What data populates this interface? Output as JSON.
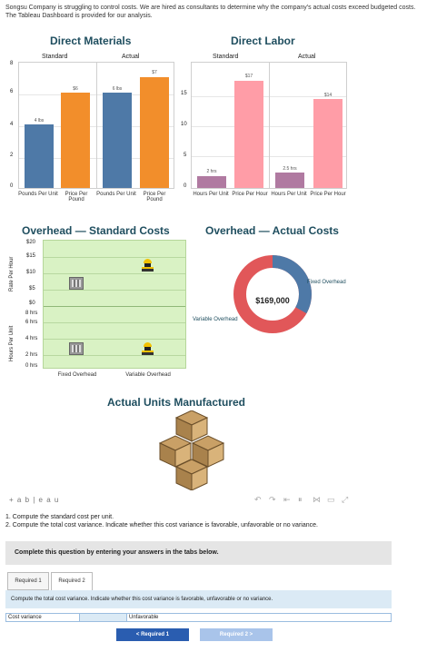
{
  "intro_text": "Songsu Company is struggling to control costs. We are hired as consultants to determine why the company's actual costs exceed budgeted costs. The Tableau Dashboard is provided for our analysis.",
  "direct_materials": {
    "title": "Direct Materials",
    "standard_label": "Standard",
    "actual_label": "Actual",
    "y_ticks": [
      "8",
      "6",
      "4",
      "2",
      "0"
    ],
    "categories": [
      "Pounds Per Unit",
      "Price Per Pound",
      "Pounds Per Unit",
      "Price Per Pound"
    ],
    "bar_labels": [
      "4 lbs",
      "$6",
      "6 lbs",
      "$7"
    ]
  },
  "direct_labor": {
    "title": "Direct Labor",
    "standard_label": "Standard",
    "actual_label": "Actual",
    "y_ticks": [
      "15",
      "10",
      "5",
      "0"
    ],
    "categories": [
      "Hours Per Unit",
      "Price Per Hour",
      "Hours Per Unit",
      "Price Per Hour"
    ],
    "bar_labels": [
      "2 hrs",
      "$17",
      "2.5 hrs",
      "$14"
    ]
  },
  "chart_data": [
    {
      "type": "bar",
      "title": "Direct Materials",
      "categories": [
        "Pounds Per Unit",
        "Price Per Pound",
        "Pounds Per Unit",
        "Price Per Pound"
      ],
      "groups": [
        "Standard",
        "Standard",
        "Actual",
        "Actual"
      ],
      "values": [
        4,
        6,
        6,
        7
      ],
      "ylim": [
        0,
        8
      ]
    },
    {
      "type": "bar",
      "title": "Direct Labor",
      "categories": [
        "Hours Per Unit",
        "Price Per Hour",
        "Hours Per Unit",
        "Price Per Hour"
      ],
      "groups": [
        "Standard",
        "Standard",
        "Actual",
        "Actual"
      ],
      "values": [
        2,
        17,
        2.5,
        14
      ],
      "ylim": [
        0,
        18
      ]
    },
    {
      "type": "pie",
      "title": "Overhead — Actual Costs",
      "total_label": "$169,000",
      "slices": [
        {
          "name": "Fixed Overhead",
          "value": 0.33
        },
        {
          "name": "Variable Overhead",
          "value": 0.67
        }
      ]
    }
  ],
  "overhead_standard": {
    "title": "Overhead — Standard Costs",
    "rate_axis_label": "Rate Per Hour",
    "hours_axis_label": "Hours Per Unit",
    "rate_ticks": [
      "$20",
      "$15",
      "$10",
      "$5",
      "$0"
    ],
    "hours_ticks": [
      "8 hrs",
      "6 hrs",
      "4 hrs",
      "2 hrs",
      "0 hrs"
    ],
    "fixed_label": "Fixed Overhead",
    "variable_label": "Variable Overhead"
  },
  "overhead_actual": {
    "title": "Overhead — Actual Costs",
    "center_value": "$169,000",
    "fixed_label": "Fixed Overhead",
    "variable_label": "Variable Overhead"
  },
  "units": {
    "title": "Actual Units Manufactured"
  },
  "tableau_logo": "+ a b | e a u",
  "questions": {
    "q1": "1. Compute the standard cost per unit.",
    "q2": "2. Compute the total cost variance. Indicate whether this cost variance is favorable, unfavorable or no variance."
  },
  "instruction_banner": "Complete this question by entering your answers in the tabs below.",
  "tabs": [
    "Required 1",
    "Required 2"
  ],
  "tab_instruction": "Compute the total cost variance. Indicate whether this cost variance is favorable, unfavorable or no variance.",
  "answer_row": {
    "label": "Cost variance",
    "value": "",
    "selection": "Unfavorable"
  },
  "nav": {
    "prev": "< Required 1",
    "next": "Required 2 >"
  },
  "colors": {
    "blue": "#4e79a7",
    "orange": "#f28e2b",
    "purple": "#b07aa1",
    "pink": "#ff9da7",
    "red": "#e15759",
    "green_bg": "#d9f2c4",
    "nav_blue": "#2a5db0"
  }
}
